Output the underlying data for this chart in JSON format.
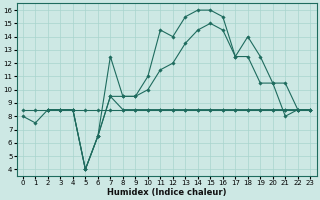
{
  "xlabel": "Humidex (Indice chaleur)",
  "ylabel": "",
  "bg_color": "#cde8e4",
  "line_color": "#1e6b5e",
  "grid_color": "#a8d5ce",
  "xlim": [
    -0.5,
    23.5
  ],
  "ylim": [
    3.5,
    16.5
  ],
  "xticks": [
    0,
    1,
    2,
    3,
    4,
    5,
    6,
    7,
    8,
    9,
    10,
    11,
    12,
    13,
    14,
    15,
    16,
    17,
    18,
    19,
    20,
    21,
    22,
    23
  ],
  "yticks": [
    4,
    5,
    6,
    7,
    8,
    9,
    10,
    11,
    12,
    13,
    14,
    15,
    16
  ],
  "series": [
    {
      "x": [
        0,
        1,
        2,
        3,
        4,
        5,
        6,
        7,
        8,
        9,
        10,
        11,
        12,
        13,
        14,
        15,
        16,
        17,
        18,
        19,
        20,
        21,
        22,
        23
      ],
      "y": [
        8,
        7.5,
        8.5,
        8.5,
        8.5,
        4,
        6.5,
        9.5,
        8.5,
        8.5,
        8.5,
        8.5,
        8.5,
        8.5,
        8.5,
        8.5,
        8.5,
        8.5,
        8.5,
        8.5,
        8.5,
        8.5,
        8.5,
        8.5
      ]
    },
    {
      "x": [
        2,
        3,
        4,
        5,
        6,
        7,
        8,
        9,
        10,
        11,
        12,
        13,
        14,
        15,
        16,
        17,
        18,
        19,
        20,
        21,
        22,
        23
      ],
      "y": [
        8.5,
        8.5,
        8.5,
        4,
        6.5,
        12.5,
        9.5,
        9.5,
        11,
        14.5,
        14.0,
        15.5,
        16,
        16.0,
        15.5,
        12.5,
        14.0,
        12.5,
        10.5,
        8.0,
        8.5,
        8.5
      ]
    },
    {
      "x": [
        2,
        3,
        4,
        5,
        6,
        7,
        8,
        9,
        10,
        11,
        12,
        13,
        14,
        15,
        16,
        17,
        18,
        19,
        20,
        21,
        22,
        23
      ],
      "y": [
        8.5,
        8.5,
        8.5,
        4,
        6.5,
        9.5,
        9.5,
        9.5,
        10,
        11.5,
        12.0,
        13.5,
        14.5,
        15.0,
        14.5,
        12.5,
        12.5,
        10.5,
        10.5,
        10.5,
        8.5,
        8.5
      ]
    },
    {
      "x": [
        0,
        1,
        2,
        3,
        4,
        5,
        6,
        7,
        8,
        9,
        10,
        11,
        12,
        13,
        14,
        15,
        16,
        17,
        18,
        19,
        20,
        21,
        22,
        23
      ],
      "y": [
        8.5,
        8.5,
        8.5,
        8.5,
        8.5,
        8.5,
        8.5,
        8.5,
        8.5,
        8.5,
        8.5,
        8.5,
        8.5,
        8.5,
        8.5,
        8.5,
        8.5,
        8.5,
        8.5,
        8.5,
        8.5,
        8.5,
        8.5,
        8.5
      ]
    }
  ]
}
